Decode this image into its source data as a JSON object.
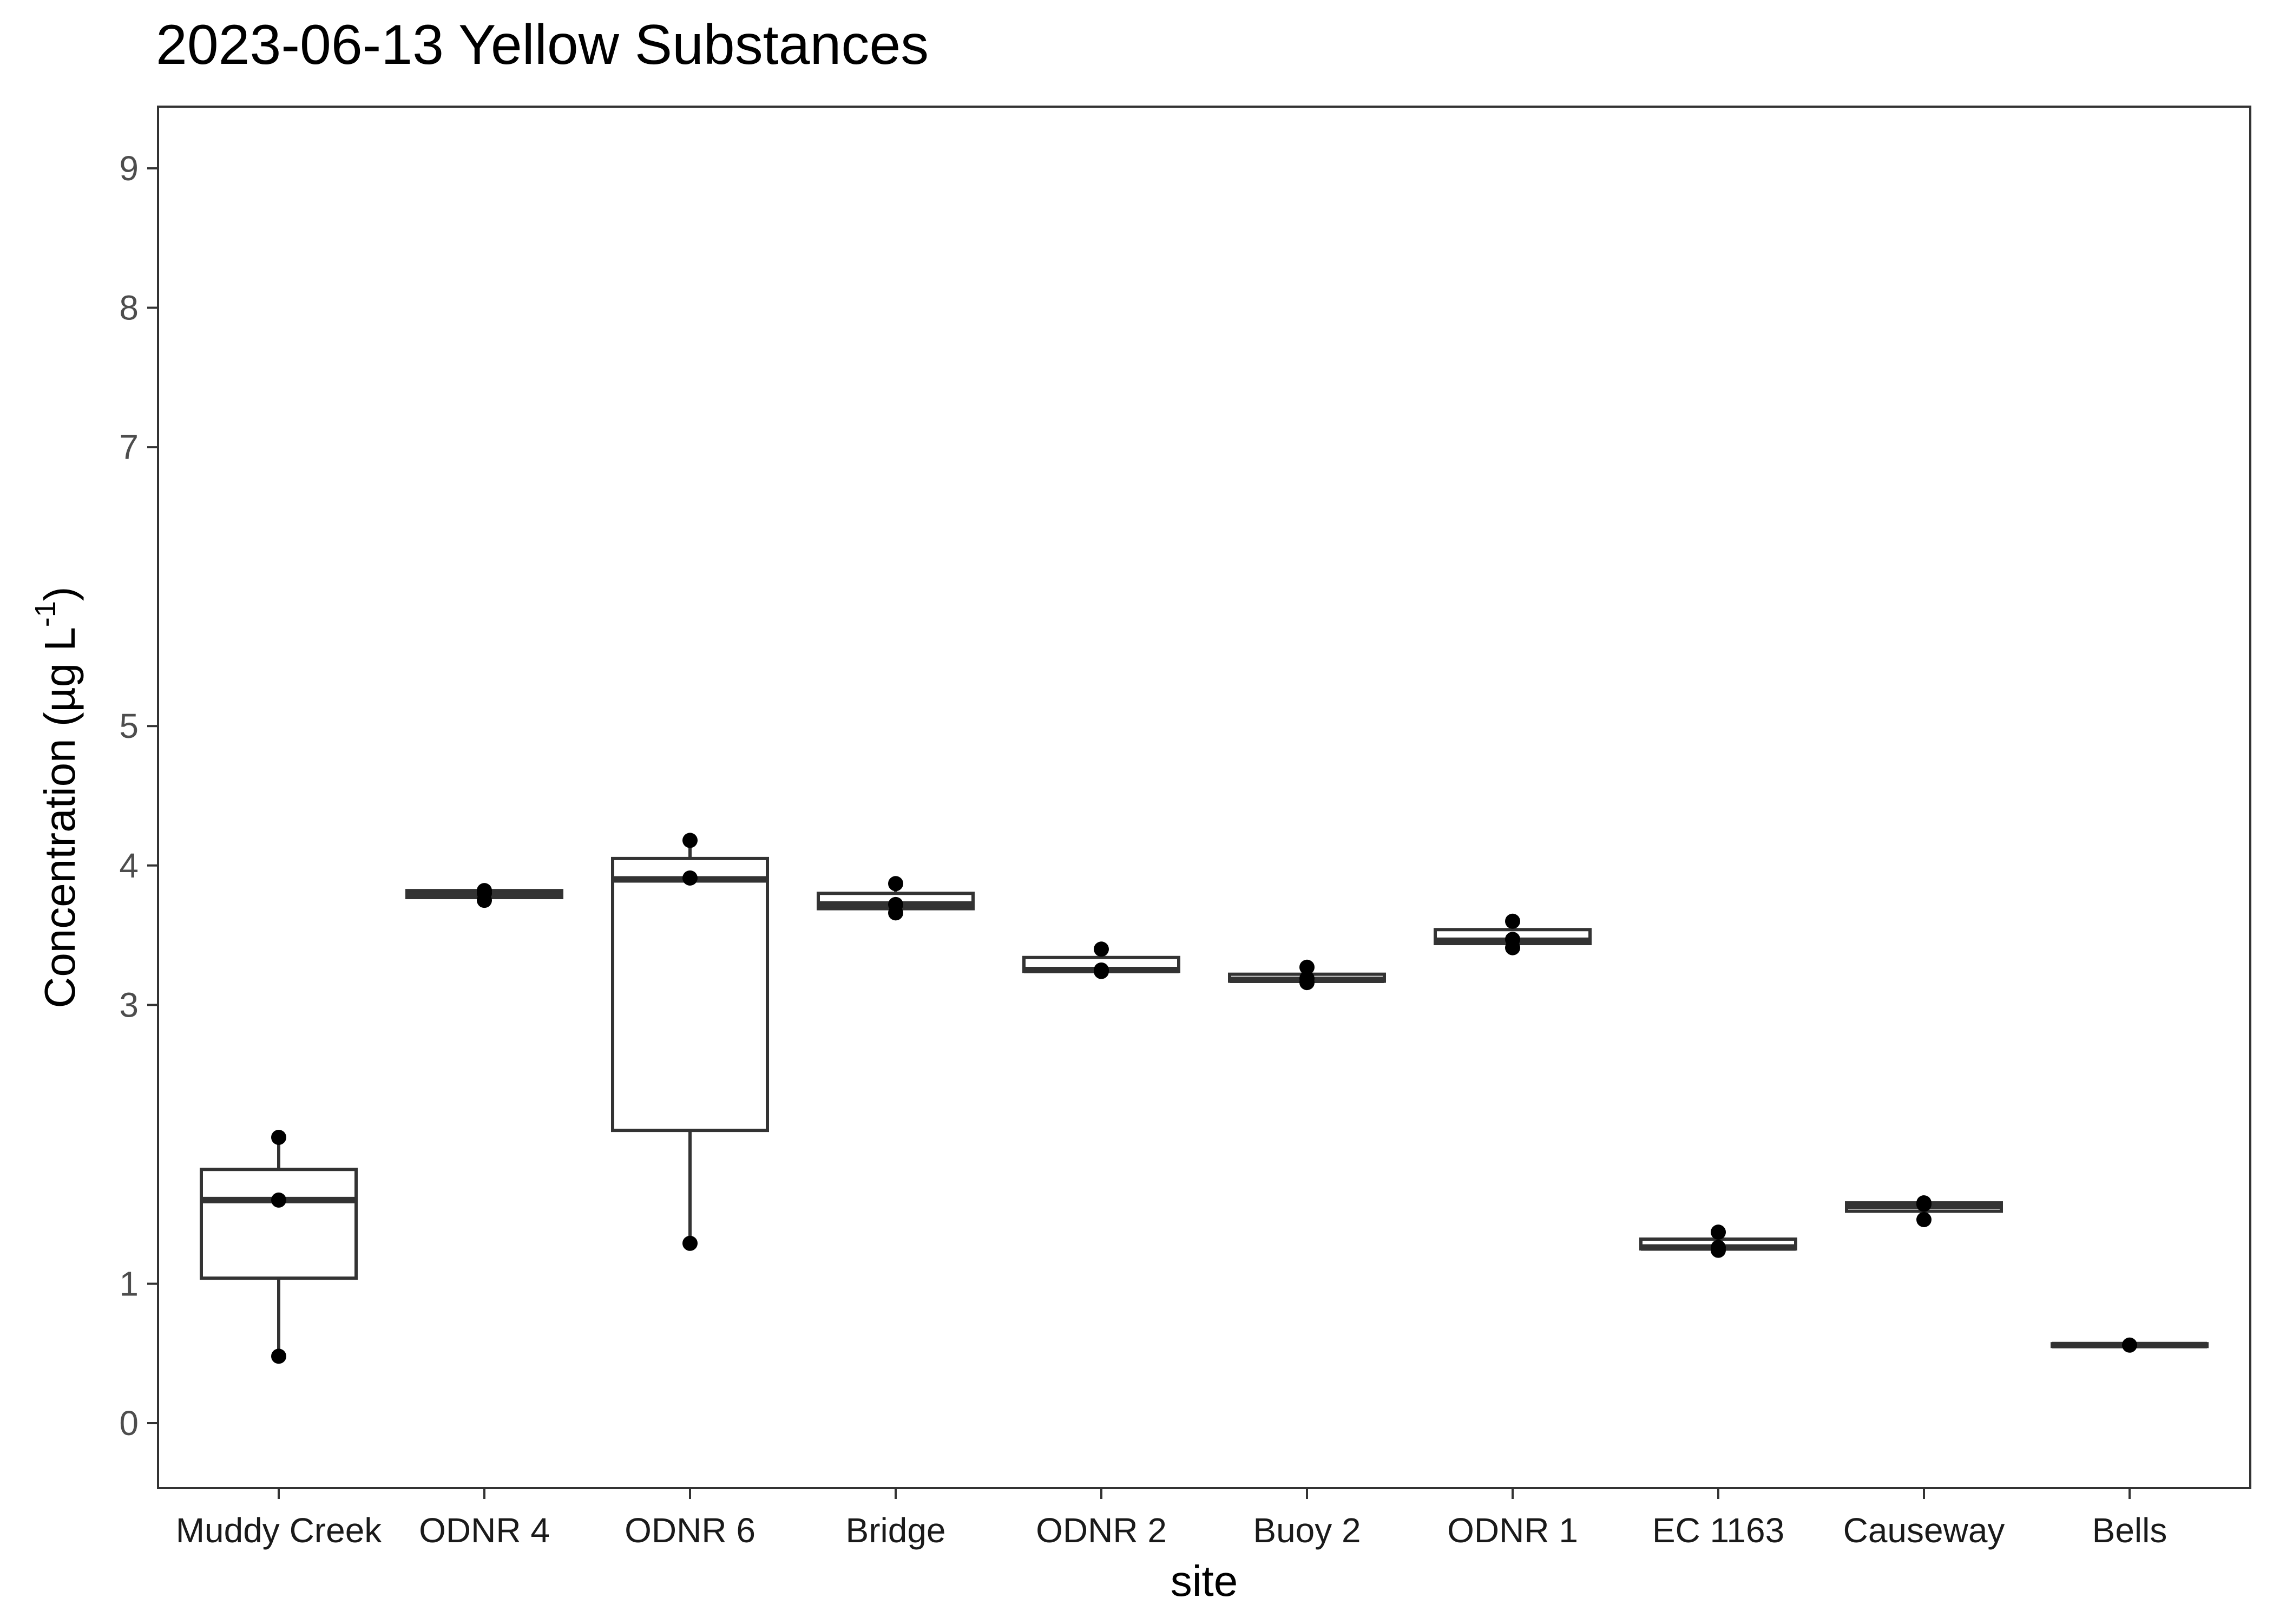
{
  "chart_data": {
    "type": "boxplot",
    "title": "2023-06-13 Yellow Substances",
    "xlabel": "site",
    "ylabel": "Concentration (µg L⁻¹)",
    "ylabel_parts": {
      "pre": "Concentration (µg L",
      "sup": "-1",
      "post": ")"
    },
    "ylim": [
      -0.35,
      9.35
    ],
    "yticks": [
      0,
      1,
      3,
      4,
      5,
      7,
      8,
      9
    ],
    "grid": false,
    "colors": {
      "box_line": "#333333",
      "box_fill": "#ffffff",
      "points": "#000000",
      "panel_border": "#333333"
    },
    "categories": [
      "Muddy Creek",
      "ODNR 4",
      "ODNR 6",
      "Bridge",
      "ODNR 2",
      "Buoy 2",
      "ODNR 1",
      "EC 1163",
      "Causeway",
      "Bells"
    ],
    "boxes": [
      {
        "site": "Muddy Creek",
        "q1": 1.04,
        "median": 1.6,
        "q3": 1.82,
        "whisker_low": 0.47,
        "whisker_high": 2.05,
        "points": [
          0.48,
          1.6,
          2.05
        ]
      },
      {
        "site": "ODNR 4",
        "q1": 3.77,
        "median": 3.79,
        "q3": 3.82,
        "whisker_low": 3.75,
        "whisker_high": 3.82,
        "points": [
          3.75,
          3.8,
          3.82
        ]
      },
      {
        "site": "ODNR 6",
        "q1": 2.1,
        "median": 3.9,
        "q3": 4.05,
        "whisker_low": 1.28,
        "whisker_high": 4.18,
        "points": [
          1.29,
          3.91,
          4.18
        ]
      },
      {
        "site": "Bridge",
        "q1": 3.69,
        "median": 3.72,
        "q3": 3.8,
        "whisker_low": 3.66,
        "whisker_high": 3.87,
        "points": [
          3.66,
          3.72,
          3.87
        ]
      },
      {
        "site": "ODNR 2",
        "q1": 3.24,
        "median": 3.25,
        "q3": 3.34,
        "whisker_low": 3.24,
        "whisker_high": 3.4,
        "points": [
          3.24,
          3.25,
          3.4
        ]
      },
      {
        "site": "Buoy 2",
        "q1": 3.17,
        "median": 3.18,
        "q3": 3.22,
        "whisker_low": 3.16,
        "whisker_high": 3.27,
        "points": [
          3.16,
          3.19,
          3.27
        ]
      },
      {
        "site": "ODNR 1",
        "q1": 3.44,
        "median": 3.46,
        "q3": 3.54,
        "whisker_low": 3.41,
        "whisker_high": 3.6,
        "points": [
          3.41,
          3.47,
          3.6
        ]
      },
      {
        "site": "EC 1163",
        "q1": 1.25,
        "median": 1.26,
        "q3": 1.32,
        "whisker_low": 1.24,
        "whisker_high": 1.37,
        "points": [
          1.24,
          1.26,
          1.37
        ]
      },
      {
        "site": "Causeway",
        "q1": 1.52,
        "median": 1.56,
        "q3": 1.58,
        "whisker_low": 1.46,
        "whisker_high": 1.58,
        "points": [
          1.46,
          1.57,
          1.58
        ]
      },
      {
        "site": "Bells",
        "q1": 0.55,
        "median": 0.56,
        "q3": 0.57,
        "whisker_low": 0.55,
        "whisker_high": 0.57,
        "points": [
          0.56
        ]
      }
    ]
  }
}
